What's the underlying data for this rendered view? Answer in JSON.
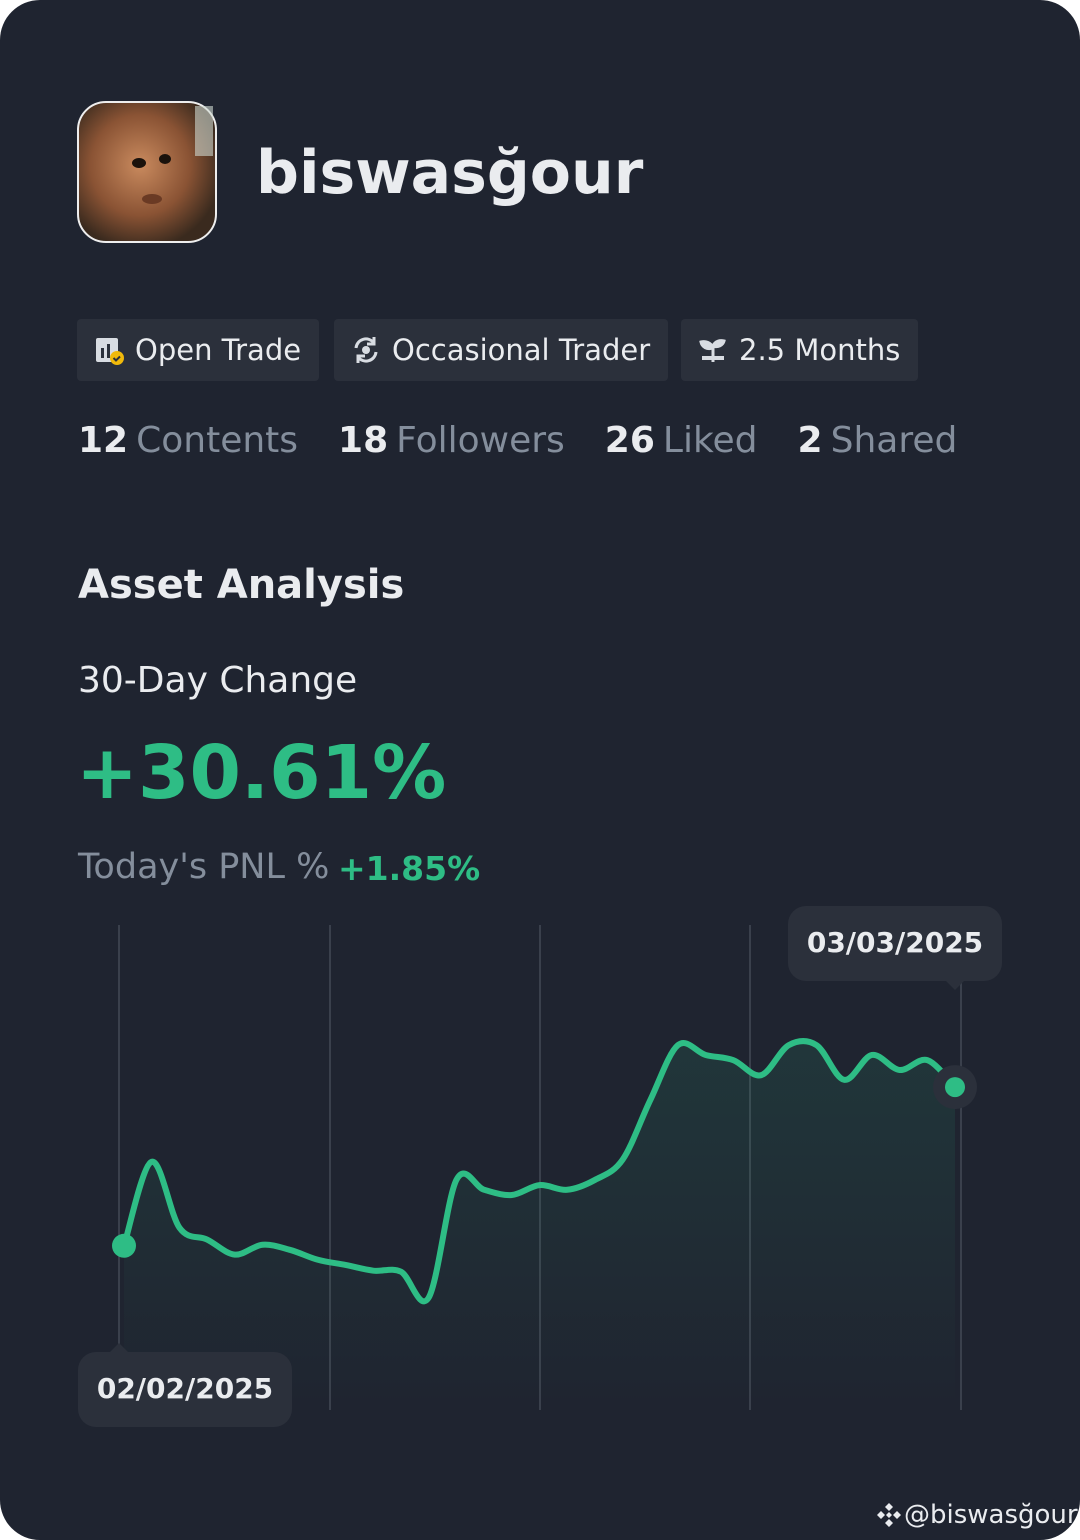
{
  "profile": {
    "name": "biswasğour"
  },
  "tags": [
    "Open Trade",
    "Occasional Trader",
    "2.5 Months"
  ],
  "stats": [
    {
      "value": 12,
      "label": "Contents"
    },
    {
      "value": 18,
      "label": "Followers"
    },
    {
      "value": 26,
      "label": "Liked"
    },
    {
      "value": 2,
      "label": "Shared"
    }
  ],
  "chart_data": {
    "type": "line",
    "title": "Asset Analysis",
    "subtitle": "30-Day Change",
    "change": "+30.61%",
    "pnl_label": "Today's PNL %",
    "pnl_value": "+1.85%",
    "color": "#2ebd85",
    "categories": [
      "02/02/2025",
      null,
      null,
      null,
      null,
      null,
      null,
      null,
      null,
      null,
      null,
      null,
      null,
      null,
      null,
      null,
      null,
      null,
      null,
      null,
      null,
      null,
      null,
      null,
      null,
      null,
      null,
      null,
      null,
      null,
      "03/03/2025"
    ],
    "values": [
      0,
      16.2,
      3.5,
      1.2,
      -1.7,
      0.2,
      -0.8,
      -2.7,
      -3.7,
      -4.8,
      -5.0,
      -10.0,
      12.7,
      10.8,
      9.8,
      11.7,
      10.8,
      12.7,
      16.6,
      28.1,
      38.7,
      36.8,
      35.8,
      32.9,
      38.7,
      38.7,
      32.0,
      36.8,
      33.9,
      35.8,
      30.6
    ],
    "ylim": [
      -12,
      42
    ]
  },
  "watermark": "@biswasğour"
}
